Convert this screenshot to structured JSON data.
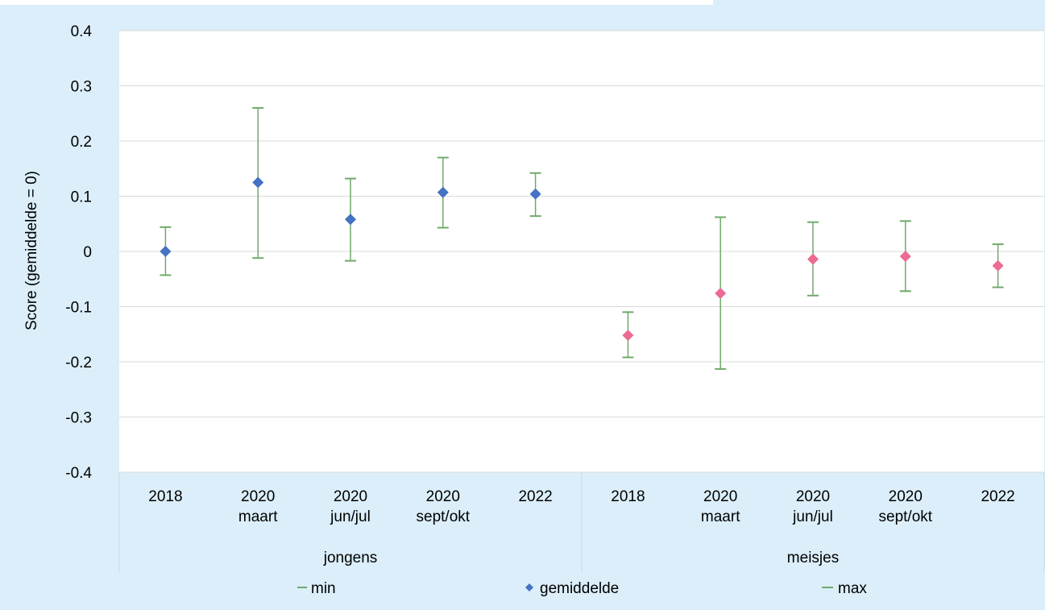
{
  "chart_data": {
    "type": "scatter",
    "title": "",
    "ylabel": "Score (gemiddelde = 0)",
    "ylim": [
      -0.4,
      0.4
    ],
    "yticks": [
      "0.4",
      "0.3",
      "0.2",
      "0.1",
      "0",
      "-0.1",
      "-0.2",
      "-0.3",
      "-0.4"
    ],
    "ytick_values": [
      0.4,
      0.3,
      0.2,
      0.1,
      0,
      -0.1,
      -0.2,
      -0.3,
      -0.4
    ],
    "grid": true,
    "legend_position": "bottom",
    "legend": [
      "min",
      "gemiddelde",
      "max"
    ],
    "groups": [
      {
        "name": "jongens",
        "color": "#4472c4",
        "categories": [
          [
            "2018"
          ],
          [
            "2020",
            "maart"
          ],
          [
            "2020",
            "jun/jul"
          ],
          [
            "2020",
            "sept/okt"
          ],
          [
            "2022"
          ]
        ],
        "min": [
          -0.043,
          -0.012,
          -0.017,
          0.043,
          0.064
        ],
        "gemiddelde": [
          0.0,
          0.125,
          0.058,
          0.107,
          0.104
        ],
        "max": [
          0.044,
          0.26,
          0.132,
          0.17,
          0.142
        ]
      },
      {
        "name": "meisjes",
        "color": "#ec6b93",
        "categories": [
          [
            "2018"
          ],
          [
            "2020",
            "maart"
          ],
          [
            "2020",
            "jun/jul"
          ],
          [
            "2020",
            "sept/okt"
          ],
          [
            "2022"
          ]
        ],
        "min": [
          -0.192,
          -0.213,
          -0.08,
          -0.072,
          -0.065
        ],
        "gemiddelde": [
          -0.152,
          -0.076,
          -0.014,
          -0.009,
          -0.026
        ],
        "max": [
          -0.11,
          0.062,
          0.053,
          0.055,
          0.013
        ]
      }
    ],
    "colors": {
      "background": "#dbeef9",
      "plot_area": "#ffffff",
      "whisker": "#70a96b",
      "grid": "#d9d9d9"
    }
  }
}
